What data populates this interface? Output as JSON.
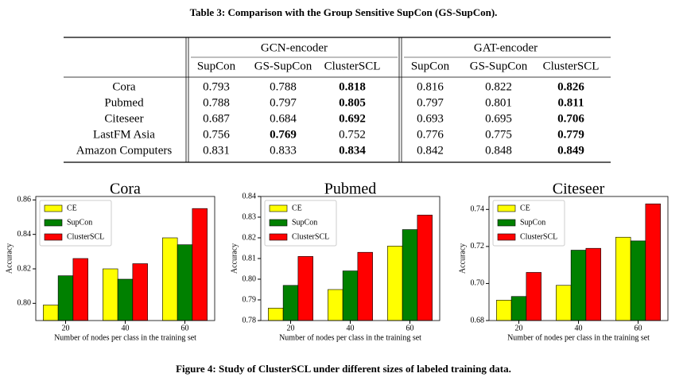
{
  "table_caption": "Table 3: Comparison with the Group Sensitive SupCon (GS-SupCon).",
  "table": {
    "groups": [
      "GCN-encoder",
      "GAT-encoder"
    ],
    "columns": [
      "SupCon",
      "GS-SupCon",
      "ClusterSCL",
      "SupCon",
      "GS-SupCon",
      "ClusterSCL"
    ],
    "rows": [
      {
        "name": "Cora",
        "values": [
          0.793,
          0.788,
          0.818,
          0.816,
          0.822,
          0.826
        ],
        "bold": [
          2,
          5
        ]
      },
      {
        "name": "Pubmed",
        "values": [
          0.788,
          0.797,
          0.805,
          0.797,
          0.801,
          0.811
        ],
        "bold": [
          2,
          5
        ]
      },
      {
        "name": "Citeseer",
        "values": [
          0.687,
          0.684,
          0.692,
          0.693,
          0.695,
          0.706
        ],
        "bold": [
          2,
          5
        ]
      },
      {
        "name": "LastFM Asia",
        "values": [
          0.756,
          0.769,
          0.752,
          0.776,
          0.775,
          0.779
        ],
        "bold": [
          1,
          5
        ]
      },
      {
        "name": "Amazon Computers",
        "values": [
          0.831,
          0.833,
          0.834,
          0.842,
          0.848,
          0.849
        ],
        "bold": [
          2,
          5
        ]
      }
    ]
  },
  "chart_data": [
    {
      "type": "bar",
      "title": "Cora",
      "xlabel": "Number of nodes per class in the training set",
      "ylabel": "Accuracy",
      "categories": [
        "20",
        "40",
        "60"
      ],
      "legend": "upper left",
      "series": [
        {
          "name": "CE",
          "color": "#ffff00",
          "values": [
            0.799,
            0.82,
            0.838
          ]
        },
        {
          "name": "SupCon",
          "color": "#008000",
          "values": [
            0.816,
            0.814,
            0.834
          ]
        },
        {
          "name": "ClusterSCL",
          "color": "#ff0000",
          "values": [
            0.826,
            0.823,
            0.855
          ]
        }
      ],
      "ylim": [
        0.79,
        0.862
      ],
      "yticks": [
        {
          "value": 0.8,
          "label": "0.80"
        },
        0.82,
        0.84,
        0.86
      ]
    },
    {
      "type": "bar",
      "title": "Pubmed",
      "xlabel": "Number of nodes per class in the training set",
      "ylabel": "Accuracy",
      "categories": [
        "20",
        "40",
        "60"
      ],
      "legend": "upper left",
      "series": [
        {
          "name": "CE",
          "color": "#ffff00",
          "values": [
            0.786,
            0.795,
            0.816
          ]
        },
        {
          "name": "SupCon",
          "color": "#008000",
          "values": [
            0.797,
            0.804,
            0.824
          ]
        },
        {
          "name": "ClusterSCL",
          "color": "#ff0000",
          "values": [
            0.811,
            0.813,
            0.831
          ]
        }
      ],
      "ylim": [
        0.78,
        0.84
      ],
      "yticks": [
        0.78,
        0.79,
        {
          "value": 0.8,
          "label": "0.80"
        },
        0.81,
        0.82,
        0.83,
        0.84
      ]
    },
    {
      "type": "bar",
      "title": "Citeseer",
      "xlabel": "Number of nodes per class in the training set",
      "ylabel": "Accuracy",
      "categories": [
        "20",
        "40",
        "60"
      ],
      "legend": "upper left",
      "series": [
        {
          "name": "CE",
          "color": "#ffff00",
          "values": [
            0.691,
            0.699,
            0.725
          ]
        },
        {
          "name": "SupCon",
          "color": "#008000",
          "values": [
            0.693,
            0.718,
            0.723
          ]
        },
        {
          "name": "ClusterSCL",
          "color": "#ff0000",
          "values": [
            0.706,
            0.719,
            0.743
          ]
        }
      ],
      "ylim": [
        0.68,
        0.747
      ],
      "yticks": [
        0.68,
        {
          "value": 0.7,
          "label": "0.70"
        },
        0.72,
        0.74
      ]
    }
  ],
  "figure_caption": "Figure 4: Study of ClusterSCL under different sizes of labeled training data."
}
